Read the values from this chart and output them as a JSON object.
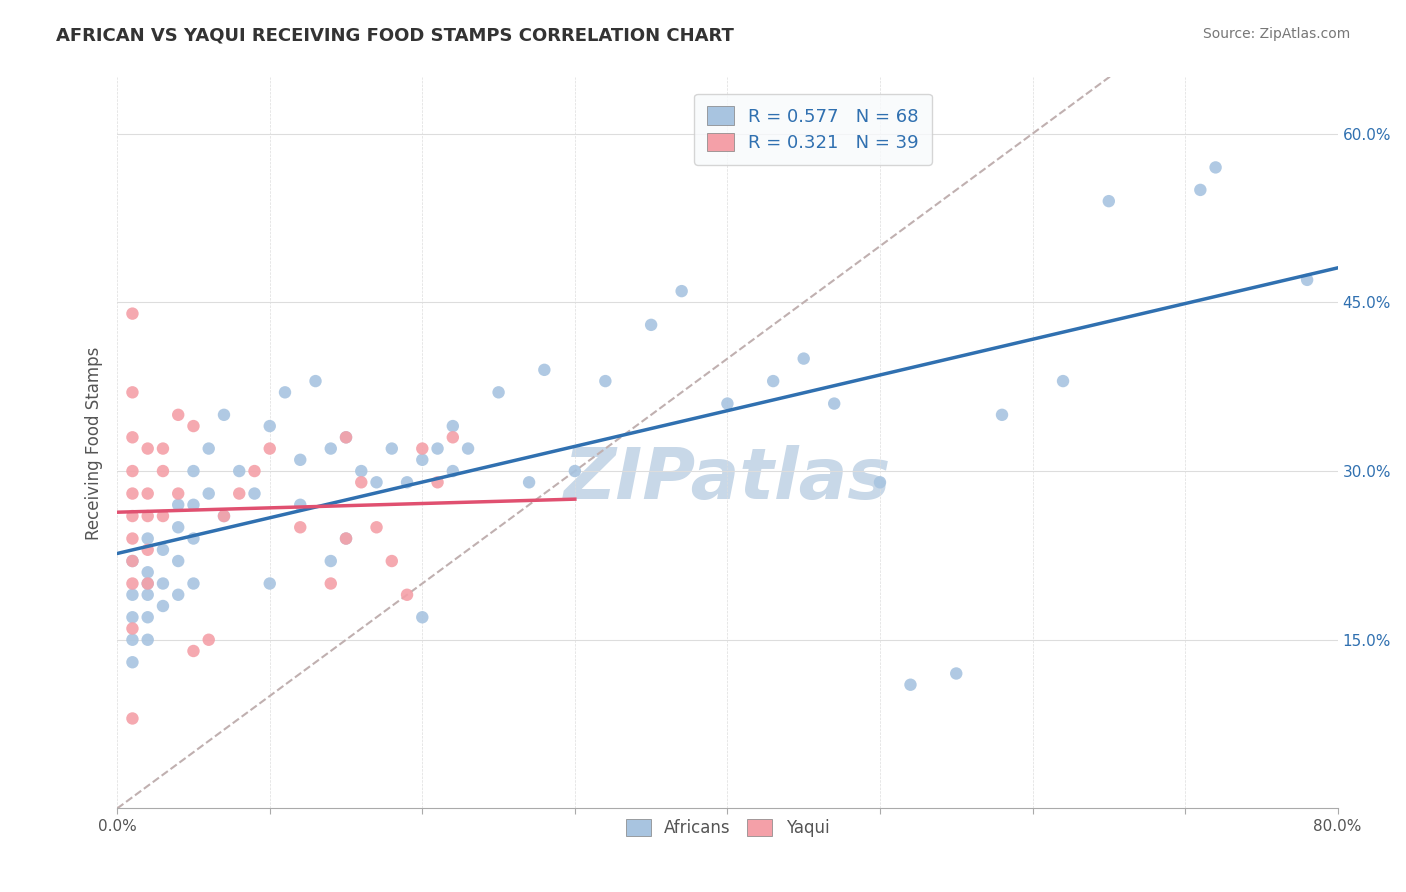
{
  "title": "AFRICAN VS YAQUI RECEIVING FOOD STAMPS CORRELATION CHART",
  "source": "Source: ZipAtlas.com",
  "xlabel": "",
  "ylabel": "Receiving Food Stamps",
  "xlim": [
    0.0,
    0.8
  ],
  "ylim": [
    0.0,
    0.65
  ],
  "xticks": [
    0.0,
    0.1,
    0.2,
    0.3,
    0.4,
    0.5,
    0.6,
    0.7,
    0.8
  ],
  "xticklabels": [
    "0.0%",
    "",
    "",
    "",
    "",
    "",
    "",
    "",
    "80.0%"
  ],
  "ytick_positions": [
    0.15,
    0.3,
    0.45,
    0.6
  ],
  "ytick_labels": [
    "15.0%",
    "30.0%",
    "45.0%",
    "60.0%"
  ],
  "african_R": 0.577,
  "african_N": 68,
  "yaqui_R": 0.321,
  "yaqui_N": 39,
  "african_color": "#a8c4e0",
  "yaqui_color": "#f4a0a8",
  "african_line_color": "#3070b0",
  "yaqui_line_color": "#e05070",
  "diagonal_color": "#c0b0b0",
  "watermark": "ZIPatlas",
  "watermark_color": "#c8d8e8",
  "legend_box_color": "#f0f4f8",
  "legend_text_color": "#3070b0",
  "africans_x": [
    0.01,
    0.01,
    0.01,
    0.01,
    0.01,
    0.02,
    0.02,
    0.02,
    0.02,
    0.02,
    0.02,
    0.03,
    0.03,
    0.03,
    0.04,
    0.04,
    0.04,
    0.04,
    0.05,
    0.05,
    0.05,
    0.05,
    0.06,
    0.06,
    0.07,
    0.07,
    0.08,
    0.09,
    0.1,
    0.1,
    0.11,
    0.12,
    0.12,
    0.13,
    0.14,
    0.14,
    0.15,
    0.15,
    0.16,
    0.17,
    0.18,
    0.19,
    0.2,
    0.2,
    0.21,
    0.22,
    0.22,
    0.23,
    0.25,
    0.27,
    0.28,
    0.3,
    0.32,
    0.35,
    0.37,
    0.4,
    0.43,
    0.45,
    0.47,
    0.5,
    0.52,
    0.55,
    0.58,
    0.62,
    0.65,
    0.71,
    0.72,
    0.78
  ],
  "africans_y": [
    0.22,
    0.19,
    0.17,
    0.15,
    0.13,
    0.24,
    0.21,
    0.2,
    0.19,
    0.17,
    0.15,
    0.23,
    0.2,
    0.18,
    0.27,
    0.25,
    0.22,
    0.19,
    0.3,
    0.27,
    0.24,
    0.2,
    0.32,
    0.28,
    0.35,
    0.26,
    0.3,
    0.28,
    0.34,
    0.2,
    0.37,
    0.31,
    0.27,
    0.38,
    0.32,
    0.22,
    0.33,
    0.24,
    0.3,
    0.29,
    0.32,
    0.29,
    0.31,
    0.17,
    0.32,
    0.34,
    0.3,
    0.32,
    0.37,
    0.29,
    0.39,
    0.3,
    0.38,
    0.43,
    0.46,
    0.36,
    0.38,
    0.4,
    0.36,
    0.29,
    0.11,
    0.12,
    0.35,
    0.38,
    0.54,
    0.55,
    0.57,
    0.47
  ],
  "yaqui_x": [
    0.01,
    0.01,
    0.01,
    0.01,
    0.01,
    0.01,
    0.01,
    0.01,
    0.01,
    0.01,
    0.01,
    0.02,
    0.02,
    0.02,
    0.02,
    0.02,
    0.03,
    0.03,
    0.04,
    0.05,
    0.05,
    0.06,
    0.07,
    0.08,
    0.09,
    0.1,
    0.12,
    0.14,
    0.15,
    0.15,
    0.16,
    0.17,
    0.18,
    0.19,
    0.2,
    0.21,
    0.22,
    0.03,
    0.04
  ],
  "yaqui_y": [
    0.44,
    0.37,
    0.33,
    0.3,
    0.28,
    0.26,
    0.24,
    0.22,
    0.2,
    0.16,
    0.08,
    0.32,
    0.28,
    0.26,
    0.23,
    0.2,
    0.3,
    0.26,
    0.35,
    0.34,
    0.14,
    0.15,
    0.26,
    0.28,
    0.3,
    0.32,
    0.25,
    0.2,
    0.24,
    0.33,
    0.29,
    0.25,
    0.22,
    0.19,
    0.32,
    0.29,
    0.33,
    0.32,
    0.28
  ]
}
